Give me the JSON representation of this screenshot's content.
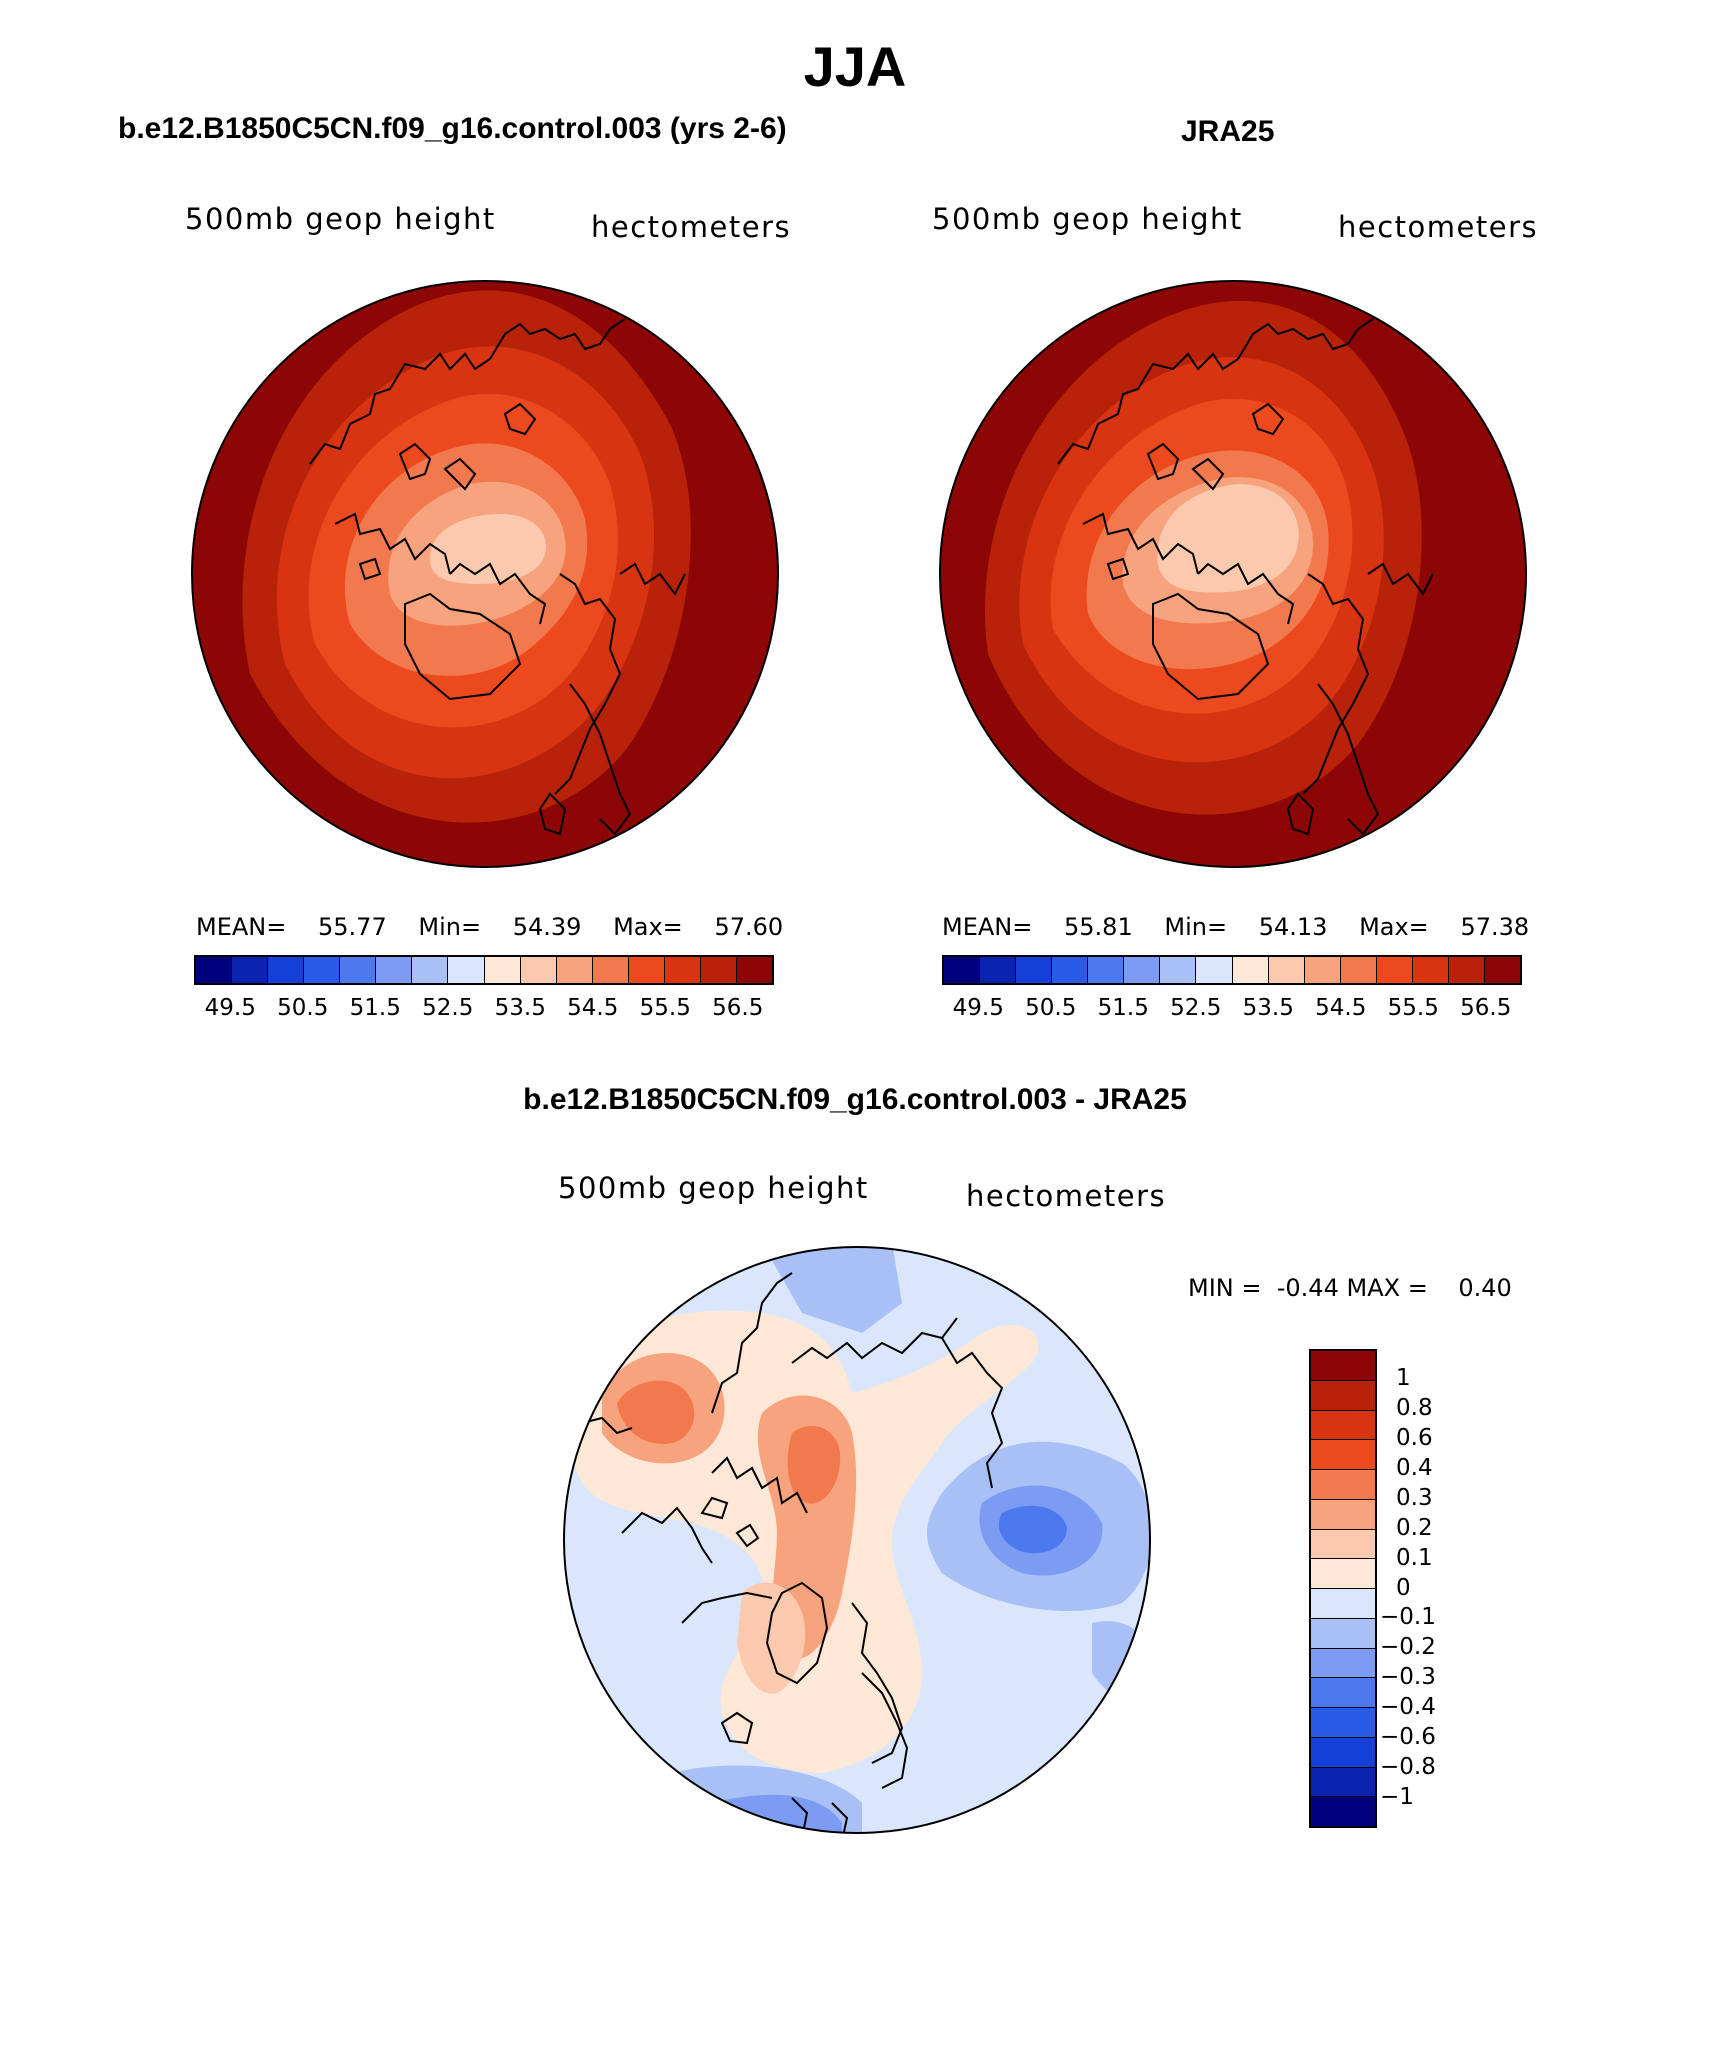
{
  "figure": {
    "title": "JJA"
  },
  "panels": {
    "model": {
      "title": "b.e12.B1850C5CN.f09_g16.control.003 (yrs 2-6)",
      "variable": "500mb geop height",
      "units": "hectometers",
      "stats": {
        "mean_label": "MEAN=",
        "mean": "55.77",
        "min_label": "Min=",
        "min": "54.39",
        "max_label": "Max=",
        "max": "57.60"
      }
    },
    "obs": {
      "title": "JRA25",
      "variable": "500mb geop height",
      "units": "hectometers",
      "stats": {
        "mean_label": "MEAN=",
        "mean": "55.81",
        "min_label": "Min=",
        "min": "54.13",
        "max_label": "Max=",
        "max": "57.38"
      }
    },
    "diff": {
      "title": "b.e12.B1850C5CN.f09_g16.control.003 - JRA25",
      "variable": "500mb geop height",
      "units": "hectometers",
      "min_label": "MIN =",
      "min": "-0.44",
      "max_label": "MAX =",
      "max": "0.40"
    }
  },
  "colorbar_abs": {
    "colors": [
      "#00007f",
      "#0a23b0",
      "#1540d8",
      "#2a5ae8",
      "#4d78ee",
      "#7b9cf2",
      "#a9c0f6",
      "#dae6fb",
      "#fde7d6",
      "#fbcaae",
      "#f7a47e",
      "#f2784e",
      "#ec4a1e",
      "#d93412",
      "#b82209",
      "#8b0605"
    ],
    "tick_labels": [
      "49.5",
      "50.5",
      "51.5",
      "52.5",
      "53.5",
      "54.5",
      "55.5",
      "56.5"
    ]
  },
  "colorbar_diff": {
    "colors": [
      "#8b0605",
      "#b82209",
      "#d93412",
      "#ec4a1e",
      "#f2784e",
      "#f7a47e",
      "#fbcaae",
      "#fde7d6",
      "#dae6fb",
      "#a9c0f6",
      "#7b9cf2",
      "#4d78ee",
      "#2a5ae8",
      "#1540d8",
      "#0a23b0",
      "#00007f"
    ],
    "tick_labels": [
      "1",
      "0.8",
      "0.6",
      "0.4",
      "0.3",
      "0.2",
      "0.1",
      "0",
      "−0.1",
      "−0.2",
      "−0.3",
      "−0.4",
      "−0.6",
      "−0.8",
      "−1"
    ]
  }
}
